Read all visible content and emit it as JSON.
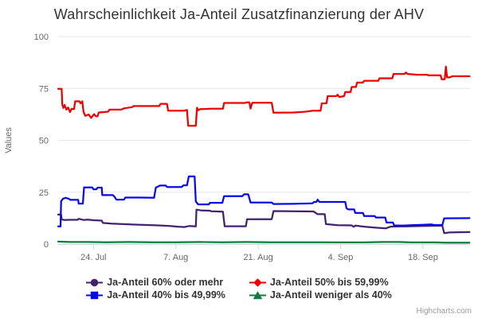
{
  "credits": "Highcharts.com",
  "chart_data": {
    "type": "line",
    "title": "Wahrscheinlichkeit Ja-Anteil Zusatzfinanzierung der AHV",
    "xlabel": "",
    "ylabel": "Values",
    "ylim": [
      0,
      100
    ],
    "yticks": [
      0,
      25,
      50,
      75,
      100
    ],
    "xlim": [
      0,
      70
    ],
    "x_unit": "days",
    "xticks": [
      {
        "pos": 6,
        "label": "24. Jul"
      },
      {
        "pos": 20,
        "label": "7. Aug"
      },
      {
        "pos": 34,
        "label": "21. Aug"
      },
      {
        "pos": 48,
        "label": "4. Sep"
      },
      {
        "pos": 62,
        "label": "18. Sep"
      }
    ],
    "grid": "horizontal",
    "legend_position": "bottom",
    "colors": {
      "grid": "#e6e6e6",
      "axis": "#ccd6eb",
      "tick_label": "#666666",
      "title": "#333333"
    },
    "series": [
      {
        "name": "Ja-Anteil 60% oder mehr",
        "color": "#44216e",
        "marker": "circle",
        "points": [
          [
            0,
            14.2
          ],
          [
            0.5,
            14.2
          ],
          [
            0.6,
            11.9
          ],
          [
            1,
            11.6
          ],
          [
            2,
            11.7
          ],
          [
            3.3,
            11.7
          ],
          [
            3.5,
            12.2
          ],
          [
            4.3,
            11.6
          ],
          [
            5,
            11.8
          ],
          [
            6,
            11.5
          ],
          [
            7.4,
            11.3
          ],
          [
            7.6,
            10.2
          ],
          [
            9,
            9.9
          ],
          [
            11,
            9.6
          ],
          [
            13,
            9.4
          ],
          [
            15,
            9.2
          ],
          [
            17,
            9
          ],
          [
            19,
            8.7
          ],
          [
            20.3,
            8.4
          ],
          [
            21.5,
            8.2
          ],
          [
            21.9,
            8.5
          ],
          [
            22.3,
            8.7
          ],
          [
            23.4,
            8.5
          ],
          [
            23.5,
            16.6
          ],
          [
            24.3,
            16.2
          ],
          [
            25.8,
            16.1
          ],
          [
            26,
            15.8
          ],
          [
            28,
            15.6
          ],
          [
            28.3,
            8.6
          ],
          [
            31.9,
            8.6
          ],
          [
            32.1,
            12
          ],
          [
            36.3,
            12
          ],
          [
            36.6,
            15.9
          ],
          [
            40,
            15.8
          ],
          [
            43.4,
            15.7
          ],
          [
            44.1,
            14.4
          ],
          [
            45.3,
            14.4
          ],
          [
            45.5,
            9.6
          ],
          [
            47.5,
            9.1
          ],
          [
            49.9,
            9
          ],
          [
            50.2,
            8.3
          ],
          [
            50.5,
            8.9
          ],
          [
            52,
            8.4
          ],
          [
            54,
            7.9
          ],
          [
            55.7,
            7.6
          ],
          [
            56.5,
            8.4
          ],
          [
            58,
            8.5
          ],
          [
            60,
            8.6
          ],
          [
            62,
            8.7
          ],
          [
            64,
            8.8
          ],
          [
            65.3,
            8.8
          ],
          [
            65.6,
            5.3
          ],
          [
            66.5,
            5.6
          ],
          [
            69.9,
            5.8
          ]
        ]
      },
      {
        "name": "Ja-Anteil 50% bis 59,99%",
        "color": "#ee0000",
        "marker": "diamond",
        "points": [
          [
            0,
            74.8
          ],
          [
            0.6,
            74.8
          ],
          [
            0.7,
            67.1
          ],
          [
            0.9,
            65.6
          ],
          [
            1.1,
            67
          ],
          [
            1.4,
            64.8
          ],
          [
            1.7,
            65.8
          ],
          [
            2,
            63.6
          ],
          [
            2.3,
            65.2
          ],
          [
            2.7,
            65
          ],
          [
            2.9,
            68.8
          ],
          [
            3.6,
            68.8
          ],
          [
            3.8,
            67.8
          ],
          [
            4.1,
            68.8
          ],
          [
            4.3,
            63.8
          ],
          [
            4.6,
            61.8
          ],
          [
            5.2,
            62.4
          ],
          [
            5.6,
            60.8
          ],
          [
            6.1,
            62.6
          ],
          [
            6.4,
            61.6
          ],
          [
            6.7,
            61.6
          ],
          [
            6.9,
            63.4
          ],
          [
            8.5,
            63.8
          ],
          [
            8.7,
            64.8
          ],
          [
            10.7,
            64.8
          ],
          [
            11.2,
            65.4
          ],
          [
            12.6,
            66
          ],
          [
            12.8,
            66.5
          ],
          [
            17.2,
            66.5
          ],
          [
            17.4,
            67.6
          ],
          [
            18.5,
            67.6
          ],
          [
            18.7,
            64.3
          ],
          [
            21.4,
            64.3
          ],
          [
            21.9,
            64.6
          ],
          [
            22.1,
            57
          ],
          [
            23.4,
            57
          ],
          [
            23.6,
            65.7
          ],
          [
            23.8,
            64.5
          ],
          [
            24.1,
            65
          ],
          [
            26,
            65.2
          ],
          [
            28,
            65.2
          ],
          [
            28.2,
            68
          ],
          [
            31.8,
            68
          ],
          [
            32,
            68.3
          ],
          [
            32.5,
            68.3
          ],
          [
            32.7,
            65.3
          ],
          [
            33,
            68.1
          ],
          [
            36.3,
            68.1
          ],
          [
            36.6,
            63.3
          ],
          [
            40,
            63.4
          ],
          [
            42,
            63.8
          ],
          [
            43.3,
            64.3
          ],
          [
            44.6,
            64.3
          ],
          [
            44.8,
            67.8
          ],
          [
            45.6,
            67.8
          ],
          [
            45.8,
            71.3
          ],
          [
            47.3,
            71.3
          ],
          [
            47.5,
            72
          ],
          [
            47.8,
            70.9
          ],
          [
            48.6,
            71.3
          ],
          [
            48.8,
            73.3
          ],
          [
            49.7,
            73.3
          ],
          [
            49.9,
            75.7
          ],
          [
            50.6,
            75.7
          ],
          [
            50.8,
            77.8
          ],
          [
            51.8,
            77.8
          ],
          [
            52,
            78.7
          ],
          [
            54.4,
            78.7
          ],
          [
            54.6,
            79.9
          ],
          [
            56.8,
            79.9
          ],
          [
            57,
            82
          ],
          [
            58.9,
            82
          ],
          [
            59.1,
            82.7
          ],
          [
            59.4,
            82
          ],
          [
            61,
            81.6
          ],
          [
            62.7,
            81.6
          ],
          [
            62.9,
            81.3
          ],
          [
            65,
            81.3
          ],
          [
            65.2,
            79.4
          ],
          [
            65.7,
            79.4
          ],
          [
            65.9,
            85.5
          ],
          [
            66.1,
            80.3
          ],
          [
            66.5,
            80.3
          ],
          [
            67,
            80.9
          ],
          [
            69.9,
            80.9
          ]
        ]
      },
      {
        "name": "Ja-Anteil 40% bis 49,99%",
        "color": "#0808f0",
        "marker": "square",
        "points": [
          [
            0,
            8.5
          ],
          [
            0.4,
            8.5
          ],
          [
            0.5,
            20.6
          ],
          [
            0.8,
            21.8
          ],
          [
            1.3,
            22.3
          ],
          [
            1.8,
            21.8
          ],
          [
            2.1,
            21.3
          ],
          [
            3.4,
            21.3
          ],
          [
            3.5,
            19.5
          ],
          [
            4.2,
            19.5
          ],
          [
            4.4,
            27.3
          ],
          [
            5.8,
            27.3
          ],
          [
            6,
            26.4
          ],
          [
            6.5,
            26.4
          ],
          [
            6.7,
            27.2
          ],
          [
            7.4,
            27.2
          ],
          [
            7.5,
            23.6
          ],
          [
            9.3,
            23.6
          ],
          [
            9.6,
            22.7
          ],
          [
            9.9,
            21.4
          ],
          [
            11.2,
            21.4
          ],
          [
            11.4,
            22.4
          ],
          [
            14,
            22.4
          ],
          [
            16.3,
            22.3
          ],
          [
            16.6,
            27.2
          ],
          [
            17.3,
            28.2
          ],
          [
            18.3,
            28.2
          ],
          [
            18.5,
            27.5
          ],
          [
            21,
            27.5
          ],
          [
            21.3,
            28.3
          ],
          [
            21.9,
            28.3
          ],
          [
            22.2,
            32.6
          ],
          [
            23.2,
            32.6
          ],
          [
            23.4,
            20.5
          ],
          [
            23.8,
            19.1
          ],
          [
            25.6,
            19.1
          ],
          [
            25.8,
            19.9
          ],
          [
            27.9,
            19.9
          ],
          [
            28.2,
            23.1
          ],
          [
            31.3,
            23.1
          ],
          [
            31.6,
            24
          ],
          [
            32.3,
            24
          ],
          [
            32.7,
            20
          ],
          [
            36.3,
            20
          ],
          [
            36.6,
            19.3
          ],
          [
            40,
            19.4
          ],
          [
            43.2,
            19.6
          ],
          [
            43.5,
            20.3
          ],
          [
            43.9,
            20.3
          ],
          [
            44.1,
            21.4
          ],
          [
            44.4,
            20.3
          ],
          [
            48.8,
            20.3
          ],
          [
            49,
            17.3
          ],
          [
            49.3,
            16.7
          ],
          [
            50.3,
            16.7
          ],
          [
            50.5,
            15
          ],
          [
            51.8,
            15
          ],
          [
            52,
            13.5
          ],
          [
            53.8,
            13.5
          ],
          [
            54,
            12.8
          ],
          [
            55.6,
            12.8
          ],
          [
            55.8,
            10.4
          ],
          [
            56.9,
            10.4
          ],
          [
            57.1,
            9
          ],
          [
            58.5,
            8.9
          ],
          [
            60,
            9.1
          ],
          [
            62,
            9.3
          ],
          [
            63.4,
            9.5
          ],
          [
            63.9,
            9.2
          ],
          [
            65.3,
            9.2
          ],
          [
            65.6,
            12.4
          ],
          [
            69.9,
            12.5
          ]
        ]
      },
      {
        "name": "Ja-Anteil weniger als 40%",
        "color": "#0b7d42",
        "marker": "triangle",
        "points": [
          [
            0,
            1.2
          ],
          [
            2,
            1
          ],
          [
            5,
            1
          ],
          [
            8,
            0.9
          ],
          [
            12,
            1
          ],
          [
            16,
            0.9
          ],
          [
            20,
            0.9
          ],
          [
            24,
            1
          ],
          [
            28,
            0.9
          ],
          [
            32,
            1
          ],
          [
            36,
            0.9
          ],
          [
            40,
            0.9
          ],
          [
            44,
            0.9
          ],
          [
            48,
            0.8
          ],
          [
            52,
            0.8
          ],
          [
            55,
            1
          ],
          [
            58,
            1
          ],
          [
            60,
            0.8
          ],
          [
            64,
            0.8
          ],
          [
            66,
            0.7
          ],
          [
            69.9,
            0.7
          ]
        ]
      }
    ]
  }
}
